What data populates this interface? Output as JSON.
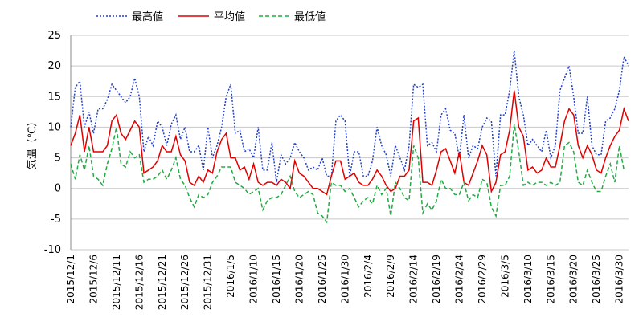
{
  "chart_data": {
    "type": "line",
    "title": "",
    "ylabel": "気温（℃）",
    "xlabel": "",
    "ylim": [
      -10,
      25
    ],
    "yticks": [
      -10,
      -5,
      0,
      5,
      10,
      15,
      20,
      25
    ],
    "x_tick_labels": [
      "2015/12/1",
      "2015/12/6",
      "2015/12/11",
      "2015/12/16",
      "2015/12/21",
      "2015/12/26",
      "2015/12/31",
      "2016/1/5",
      "2016/1/10",
      "2016/1/15",
      "2016/1/20",
      "2016/1/25",
      "2016/1/30",
      "2016/2/4",
      "2016/2/9",
      "2016/2/14",
      "2016/2/19",
      "2016/2/24",
      "2016/2/29",
      "2016/3/5",
      "2016/3/10",
      "2016/3/15",
      "2016/3/20",
      "2016/3/25",
      "2016/3/30"
    ],
    "x_tick_every": 5,
    "x_start": "2015/12/1",
    "x_end": "2016/3/31",
    "grid": true,
    "legend": "top",
    "series": [
      {
        "name": "最高値",
        "color": "#1f3fd0",
        "style": "dotted",
        "values": [
          10,
          16.5,
          17.5,
          10,
          12.5,
          9,
          13,
          13,
          14.5,
          17,
          16,
          15,
          14,
          15,
          18,
          15,
          6,
          8.5,
          7,
          11,
          10,
          7,
          10.5,
          12,
          8,
          10,
          6,
          6,
          7,
          3,
          10,
          5,
          7,
          10,
          15,
          17,
          9,
          9.5,
          6,
          6.5,
          5,
          10,
          3,
          3,
          7.5,
          1,
          5.5,
          4,
          5,
          7.5,
          6,
          5,
          3,
          3.5,
          3,
          5,
          2,
          2,
          11,
          12,
          11,
          2,
          6,
          6,
          2,
          2,
          4.5,
          10,
          7,
          5.5,
          2,
          7,
          5,
          3,
          7,
          17,
          16.5,
          17,
          7,
          7.5,
          6,
          12,
          13,
          9.5,
          9,
          5,
          12,
          5,
          7,
          6.5,
          10,
          11.5,
          11,
          2,
          12,
          12,
          16,
          22.5,
          15,
          12,
          7,
          8,
          7,
          6,
          9.5,
          5,
          7,
          16,
          18,
          20,
          15,
          9,
          9,
          15,
          7,
          5.5,
          5.5,
          11,
          11.5,
          13,
          16,
          21.5,
          20
        ]
      },
      {
        "name": "平均値",
        "color": "#e00000",
        "style": "solid",
        "values": [
          7,
          9,
          12,
          6,
          10,
          6,
          6,
          6,
          7,
          11,
          12,
          9,
          8,
          9.5,
          11,
          10,
          2.5,
          3,
          3.5,
          4.5,
          7,
          6,
          6,
          8.5,
          5.5,
          4.5,
          1,
          0.5,
          2,
          1,
          3,
          2.5,
          6,
          8,
          9,
          5,
          5,
          3,
          3.5,
          1.5,
          4,
          1,
          0.5,
          1,
          1,
          0.5,
          1.5,
          1,
          0,
          4.5,
          2.5,
          2,
          1,
          0,
          0,
          -0.5,
          -1,
          2,
          4.5,
          4.5,
          1.5,
          2,
          2.5,
          1,
          0.5,
          0.5,
          1.5,
          3,
          2,
          0.5,
          -0.5,
          0,
          2,
          2,
          3,
          11,
          11.5,
          1,
          1,
          0.5,
          3,
          6,
          6.5,
          4.5,
          2.5,
          6,
          1,
          0.5,
          2.5,
          4.5,
          7,
          5.5,
          -0.5,
          1,
          5.5,
          6,
          9.5,
          16,
          10,
          8.5,
          3,
          3.5,
          2.5,
          3,
          5,
          3.5,
          3.5,
          7,
          11,
          13,
          12,
          7,
          5,
          7,
          5.5,
          3,
          2.5,
          5,
          7,
          8.5,
          9.5,
          13,
          11
        ]
      },
      {
        "name": "最低値",
        "color": "#22aa44",
        "style": "dashed",
        "values": [
          4,
          1.5,
          5.5,
          3,
          7,
          2,
          1.5,
          0.5,
          4,
          6.5,
          10,
          4,
          3.5,
          6,
          5,
          5.5,
          1,
          1.5,
          1.5,
          2,
          3,
          1.5,
          3,
          5,
          1.5,
          0.5,
          -1.5,
          -3,
          -1,
          -1.5,
          -1,
          1,
          2,
          3.5,
          3.5,
          3.5,
          1,
          0.5,
          0,
          -1,
          -0.5,
          0,
          -3.5,
          -2,
          -1.5,
          -1.5,
          -1,
          0.5,
          2,
          -0.5,
          -1.5,
          -1,
          -0.5,
          -1,
          -4,
          -4.5,
          -5.5,
          1,
          0.5,
          0.5,
          -0.5,
          0,
          -1.5,
          -3,
          -2,
          -1.5,
          -2.5,
          0.5,
          -1,
          0,
          -4.5,
          1,
          0,
          -1.5,
          -2,
          7,
          5,
          -4,
          -2.5,
          -3.5,
          -2,
          1.5,
          0,
          0,
          -1,
          -1,
          1,
          -2,
          -1,
          -1.5,
          1.5,
          1,
          -3,
          -4.5,
          0.5,
          0.5,
          2,
          10.5,
          6,
          0.5,
          1,
          0.5,
          1,
          1,
          0.5,
          1,
          0.5,
          1,
          7,
          7.5,
          6,
          1,
          0.5,
          3,
          1,
          -0.5,
          -0.5,
          2,
          4,
          1,
          7,
          3
        ]
      }
    ]
  }
}
